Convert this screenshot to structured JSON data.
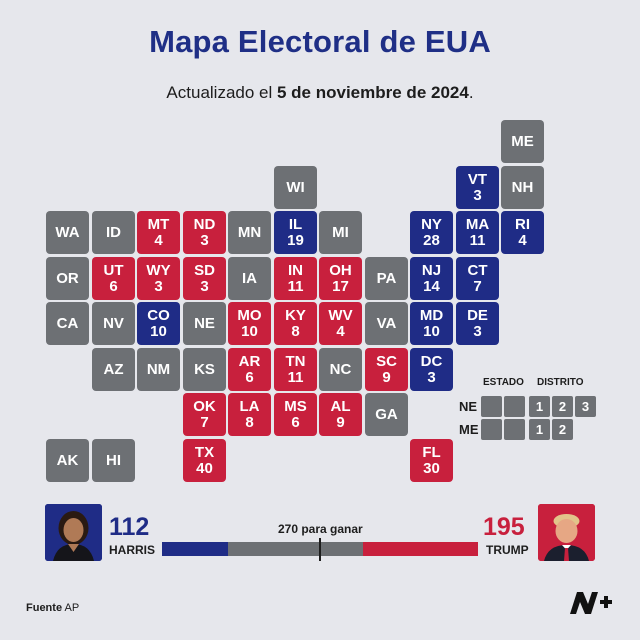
{
  "title": "Mapa Electoral de EUA",
  "subtitle": {
    "prefix": "Actualizado el ",
    "date": "5 de noviembre de 2024",
    "suffix": "."
  },
  "colors": {
    "republican": "#c8203d",
    "democrat": "#1f2c86",
    "undecided": "#6d7074",
    "background": "#e6e7ec"
  },
  "states": [
    {
      "abbr": "ME",
      "ev": "",
      "status": "u",
      "row": 0,
      "col": 11
    },
    {
      "abbr": "WI",
      "ev": "",
      "status": "u",
      "row": 1,
      "col": 6
    },
    {
      "abbr": "VT",
      "ev": "3",
      "status": "d",
      "row": 1,
      "col": 10
    },
    {
      "abbr": "NH",
      "ev": "",
      "status": "u",
      "row": 1,
      "col": 11
    },
    {
      "abbr": "WA",
      "ev": "",
      "status": "u",
      "row": 2,
      "col": 1
    },
    {
      "abbr": "ID",
      "ev": "",
      "status": "u",
      "row": 2,
      "col": 2
    },
    {
      "abbr": "MT",
      "ev": "4",
      "status": "r",
      "row": 2,
      "col": 3
    },
    {
      "abbr": "ND",
      "ev": "3",
      "status": "r",
      "row": 2,
      "col": 4
    },
    {
      "abbr": "MN",
      "ev": "",
      "status": "u",
      "row": 2,
      "col": 5
    },
    {
      "abbr": "IL",
      "ev": "19",
      "status": "d",
      "row": 2,
      "col": 6
    },
    {
      "abbr": "MI",
      "ev": "",
      "status": "u",
      "row": 2,
      "col": 7
    },
    {
      "abbr": "NY",
      "ev": "28",
      "status": "d",
      "row": 2,
      "col": 9
    },
    {
      "abbr": "MA",
      "ev": "11",
      "status": "d",
      "row": 2,
      "col": 10
    },
    {
      "abbr": "RI",
      "ev": "4",
      "status": "d",
      "row": 2,
      "col": 11
    },
    {
      "abbr": "OR",
      "ev": "",
      "status": "u",
      "row": 3,
      "col": 1
    },
    {
      "abbr": "UT",
      "ev": "6",
      "status": "r",
      "row": 3,
      "col": 2
    },
    {
      "abbr": "WY",
      "ev": "3",
      "status": "r",
      "row": 3,
      "col": 3
    },
    {
      "abbr": "SD",
      "ev": "3",
      "status": "r",
      "row": 3,
      "col": 4
    },
    {
      "abbr": "IA",
      "ev": "",
      "status": "u",
      "row": 3,
      "col": 5
    },
    {
      "abbr": "IN",
      "ev": "11",
      "status": "r",
      "row": 3,
      "col": 6
    },
    {
      "abbr": "OH",
      "ev": "17",
      "status": "r",
      "row": 3,
      "col": 7
    },
    {
      "abbr": "PA",
      "ev": "",
      "status": "u",
      "row": 3,
      "col": 8
    },
    {
      "abbr": "NJ",
      "ev": "14",
      "status": "d",
      "row": 3,
      "col": 9
    },
    {
      "abbr": "CT",
      "ev": "7",
      "status": "d",
      "row": 3,
      "col": 10
    },
    {
      "abbr": "CA",
      "ev": "",
      "status": "u",
      "row": 4,
      "col": 1
    },
    {
      "abbr": "NV",
      "ev": "",
      "status": "u",
      "row": 4,
      "col": 2
    },
    {
      "abbr": "CO",
      "ev": "10",
      "status": "d",
      "row": 4,
      "col": 3
    },
    {
      "abbr": "NE",
      "ev": "",
      "status": "u",
      "row": 4,
      "col": 4
    },
    {
      "abbr": "MO",
      "ev": "10",
      "status": "r",
      "row": 4,
      "col": 5
    },
    {
      "abbr": "KY",
      "ev": "8",
      "status": "r",
      "row": 4,
      "col": 6
    },
    {
      "abbr": "WV",
      "ev": "4",
      "status": "r",
      "row": 4,
      "col": 7
    },
    {
      "abbr": "VA",
      "ev": "",
      "status": "u",
      "row": 4,
      "col": 8
    },
    {
      "abbr": "MD",
      "ev": "10",
      "status": "d",
      "row": 4,
      "col": 9
    },
    {
      "abbr": "DE",
      "ev": "3",
      "status": "d",
      "row": 4,
      "col": 10
    },
    {
      "abbr": "AZ",
      "ev": "",
      "status": "u",
      "row": 5,
      "col": 2
    },
    {
      "abbr": "NM",
      "ev": "",
      "status": "u",
      "row": 5,
      "col": 3
    },
    {
      "abbr": "KS",
      "ev": "",
      "status": "u",
      "row": 5,
      "col": 4
    },
    {
      "abbr": "AR",
      "ev": "6",
      "status": "r",
      "row": 5,
      "col": 5
    },
    {
      "abbr": "TN",
      "ev": "11",
      "status": "r",
      "row": 5,
      "col": 6
    },
    {
      "abbr": "NC",
      "ev": "",
      "status": "u",
      "row": 5,
      "col": 7
    },
    {
      "abbr": "SC",
      "ev": "9",
      "status": "r",
      "row": 5,
      "col": 8
    },
    {
      "abbr": "DC",
      "ev": "3",
      "status": "d",
      "row": 5,
      "col": 9
    },
    {
      "abbr": "OK",
      "ev": "7",
      "status": "r",
      "row": 6,
      "col": 4
    },
    {
      "abbr": "LA",
      "ev": "8",
      "status": "r",
      "row": 6,
      "col": 5
    },
    {
      "abbr": "MS",
      "ev": "6",
      "status": "r",
      "row": 6,
      "col": 6
    },
    {
      "abbr": "AL",
      "ev": "9",
      "status": "r",
      "row": 6,
      "col": 7
    },
    {
      "abbr": "GA",
      "ev": "",
      "status": "u",
      "row": 6,
      "col": 8
    },
    {
      "abbr": "AK",
      "ev": "",
      "status": "u",
      "row": 7,
      "col": 1
    },
    {
      "abbr": "HI",
      "ev": "",
      "status": "u",
      "row": 7,
      "col": 2
    },
    {
      "abbr": "TX",
      "ev": "40",
      "status": "r",
      "row": 7,
      "col": 4
    },
    {
      "abbr": "FL",
      "ev": "30",
      "status": "r",
      "row": 7,
      "col": 9
    }
  ],
  "legend": {
    "estado_label": "ESTADO",
    "distrito_label": "DISTRITO",
    "rows": [
      {
        "state": "NE",
        "districts": [
          "1",
          "2",
          "3"
        ]
      },
      {
        "state": "ME",
        "districts": [
          "1",
          "2"
        ]
      }
    ]
  },
  "candidates": {
    "harris": {
      "count": "112",
      "name": "HARRIS",
      "color": "#1f2c86"
    },
    "trump": {
      "count": "195",
      "name": "TRUMP",
      "color": "#c8203d"
    }
  },
  "to_win_label": "270 para ganar",
  "electoral_bar": {
    "democrat": 112,
    "republican": 195,
    "total": 538,
    "to_win": 270
  },
  "source": {
    "label": "Fuente",
    "value": "AP"
  },
  "logo_text": "N+"
}
